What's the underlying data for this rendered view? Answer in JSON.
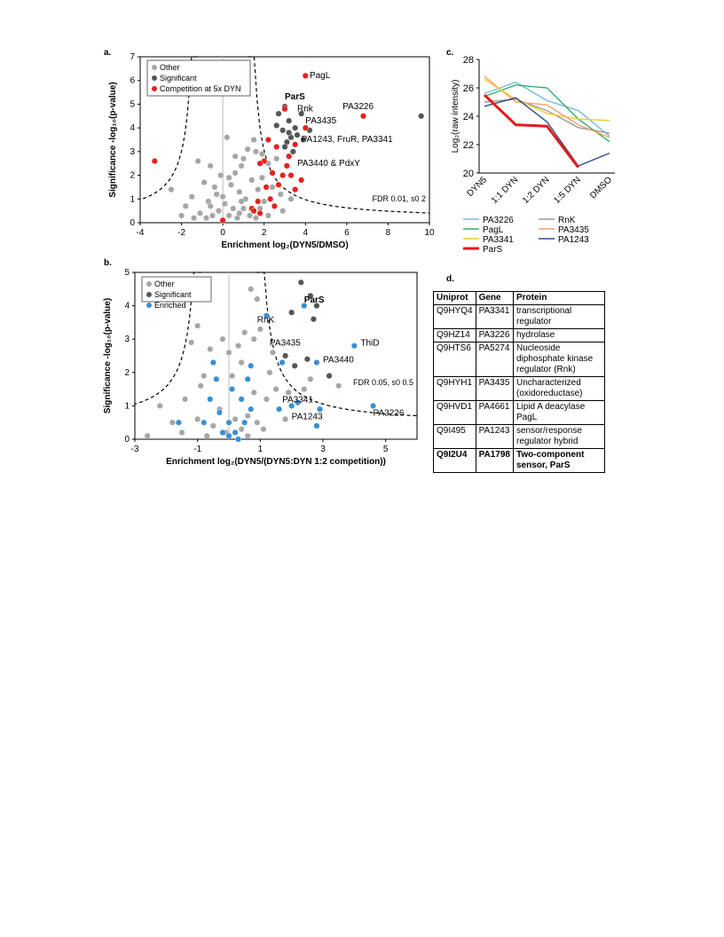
{
  "panels": {
    "a": "a.",
    "b": "b.",
    "c": "c.",
    "d": "d."
  },
  "chart_data": [
    {
      "id": "a",
      "type": "scatter",
      "xlabel": "Enrichment log₂(DYN5/DMSO)",
      "ylabel": "Significance -log₁₀(p-value)",
      "xlim": [
        -4,
        10
      ],
      "ylim": [
        0,
        7
      ],
      "xticks": [
        "-4",
        "-2",
        "0",
        "2",
        "4",
        "6",
        "8",
        "10"
      ],
      "yticks": [
        "0",
        "1",
        "2",
        "3",
        "4",
        "5",
        "6",
        "7"
      ],
      "legend": [
        "Other",
        "Significant",
        "Competition at 5x DYN"
      ],
      "legend_position": "top-left",
      "threshold_label": "FDR 0.01, s0 2",
      "series": [
        {
          "name": "Significant",
          "color": "#555555",
          "points": [
            [
              2.7,
              4.6
            ],
            [
              3.0,
              4.9
            ],
            [
              3.2,
              4.3
            ],
            [
              3.5,
              4.0
            ],
            [
              2.9,
              3.9
            ],
            [
              3.3,
              3.6
            ],
            [
              3.1,
              3.4
            ],
            [
              3.6,
              3.7
            ],
            [
              3.9,
              3.5
            ],
            [
              4.2,
              3.9
            ],
            [
              3.0,
              3.2
            ],
            [
              3.4,
              3.0
            ],
            [
              9.6,
              4.5
            ],
            [
              3.8,
              4.6
            ],
            [
              2.6,
              4.1
            ],
            [
              3.2,
              3.8
            ]
          ]
        },
        {
          "name": "Competition at 5x DYN",
          "color": "#e8201c",
          "points": [
            [
              4.0,
              6.2
            ],
            [
              6.8,
              4.5
            ],
            [
              -3.3,
              2.6
            ],
            [
              3.0,
              4.8
            ],
            [
              4.0,
              4.0
            ],
            [
              3.5,
              3.3
            ],
            [
              3.2,
              2.8
            ],
            [
              2.6,
              3.2
            ],
            [
              2.2,
              3.5
            ],
            [
              2.0,
              2.6
            ],
            [
              1.8,
              2.5
            ],
            [
              2.4,
              2.1
            ],
            [
              2.1,
              1.5
            ],
            [
              2.7,
              1.6
            ],
            [
              3.5,
              1.4
            ],
            [
              3.8,
              1.8
            ],
            [
              1.7,
              0.9
            ],
            [
              2.3,
              1.0
            ],
            [
              1.8,
              0.4
            ],
            [
              1.4,
              0.6
            ],
            [
              0.0,
              0.1
            ],
            [
              3.1,
              2.4
            ],
            [
              2.9,
              2.0
            ],
            [
              3.3,
              2.0
            ],
            [
              1.5,
              0.5
            ],
            [
              2.5,
              0.7
            ]
          ]
        },
        {
          "name": "Other",
          "color": "#a6a6a6",
          "points": [
            [
              -2.5,
              1.4
            ],
            [
              -1.8,
              0.7
            ],
            [
              -1.2,
              2.6
            ],
            [
              -0.6,
              2.4
            ],
            [
              -0.9,
              1.7
            ],
            [
              -0.3,
              1.2
            ],
            [
              0.2,
              3.6
            ],
            [
              0.6,
              2.8
            ],
            [
              0.9,
              2.4
            ],
            [
              1.2,
              3.1
            ],
            [
              1.6,
              3.0
            ],
            [
              1.9,
              2.9
            ],
            [
              2.2,
              2.5
            ],
            [
              0.4,
              1.6
            ],
            [
              0.8,
              1.3
            ],
            [
              1.1,
              1.0
            ],
            [
              1.4,
              1.8
            ],
            [
              -0.7,
              0.9
            ],
            [
              -0.2,
              0.5
            ],
            [
              0.3,
              0.3
            ],
            [
              0.7,
              0.2
            ],
            [
              -0.5,
              0.3
            ],
            [
              1.0,
              0.6
            ],
            [
              1.3,
              0.3
            ],
            [
              2.0,
              0.9
            ],
            [
              1.7,
              1.4
            ],
            [
              2.4,
              1.5
            ],
            [
              -1.1,
              0.4
            ],
            [
              -1.5,
              1.1
            ],
            [
              0.1,
              0.8
            ],
            [
              0.5,
              0.6
            ],
            [
              0.9,
              0.9
            ],
            [
              -0.8,
              0.2
            ],
            [
              1.6,
              0.2
            ],
            [
              -0.1,
              2.0
            ],
            [
              0.6,
              2.1
            ],
            [
              1.0,
              2.7
            ],
            [
              1.5,
              3.5
            ],
            [
              2.6,
              2.7
            ],
            [
              0.3,
              1.9
            ],
            [
              -0.4,
              1.5
            ],
            [
              1.9,
              1.9
            ],
            [
              2.8,
              1.2
            ],
            [
              -1.4,
              0.2
            ],
            [
              -2.0,
              0.3
            ],
            [
              0.0,
              1.1
            ],
            [
              1.8,
              0.6
            ],
            [
              2.2,
              0.3
            ],
            [
              -0.6,
              0.7
            ],
            [
              0.8,
              0.4
            ],
            [
              2.9,
              0.5
            ],
            [
              3.3,
              1.0
            ]
          ]
        }
      ],
      "labels": [
        {
          "text": "PagL",
          "x": 4.2,
          "y": 6.1
        },
        {
          "text": "ParS",
          "x": 3.0,
          "y": 5.2,
          "bold": true
        },
        {
          "text": "PA3226",
          "x": 5.8,
          "y": 4.8
        },
        {
          "text": "Rnk",
          "x": 3.6,
          "y": 4.7
        },
        {
          "text": "PA3435",
          "x": 4.0,
          "y": 4.2
        },
        {
          "text": "PA1243, FruR, PA3341",
          "x": 3.8,
          "y": 3.4
        },
        {
          "text": "PA3440 & PdxY",
          "x": 3.6,
          "y": 2.4
        }
      ]
    },
    {
      "id": "b",
      "type": "scatter",
      "xlabel": "Enrichment log₂(DYN5/(DYN5:DYN 1:2 competition))",
      "ylabel": "Significance -log₁₀(p-value)",
      "xlim": [
        -3,
        6
      ],
      "ylim": [
        0,
        5
      ],
      "xticks": [
        "-3",
        "-1",
        "1",
        "3",
        "5"
      ],
      "yticks": [
        "0",
        "1",
        "2",
        "3",
        "4",
        "5"
      ],
      "legend": [
        "Other",
        "Significant",
        "Enriched"
      ],
      "legend_position": "top-left",
      "threshold_label": "FDR 0.05, s0 0.5",
      "series": [
        {
          "name": "Significant",
          "color": "#555555",
          "points": [
            [
              2.3,
              4.7
            ],
            [
              2.6,
              4.3
            ],
            [
              2.8,
              4.0
            ],
            [
              2.0,
              3.8
            ],
            [
              2.7,
              3.6
            ],
            [
              1.8,
              2.5
            ],
            [
              2.1,
              2.2
            ],
            [
              2.5,
              2.4
            ],
            [
              3.2,
              1.9
            ]
          ]
        },
        {
          "name": "Enriched",
          "color": "#3a8fd4",
          "points": [
            [
              2.4,
              4.0
            ],
            [
              1.2,
              3.7
            ],
            [
              4.0,
              2.8
            ],
            [
              2.8,
              2.3
            ],
            [
              1.7,
              2.3
            ],
            [
              2.2,
              1.1
            ],
            [
              2.9,
              0.9
            ],
            [
              2.0,
              1.0
            ],
            [
              2.8,
              0.4
            ],
            [
              4.6,
              1.0
            ],
            [
              -0.5,
              2.3
            ],
            [
              -0.4,
              1.8
            ],
            [
              -0.6,
              1.2
            ],
            [
              -0.3,
              0.8
            ],
            [
              0.1,
              1.5
            ],
            [
              0.4,
              1.2
            ],
            [
              0.6,
              1.8
            ],
            [
              0.7,
              2.2
            ],
            [
              0.5,
              0.5
            ],
            [
              -0.8,
              0.5
            ],
            [
              -1.6,
              0.5
            ],
            [
              -0.2,
              0.2
            ],
            [
              0.0,
              0.1
            ],
            [
              0.2,
              0.2
            ],
            [
              0.3,
              0.0
            ],
            [
              0.0,
              0.5
            ],
            [
              0.7,
              0.9
            ],
            [
              1.6,
              0.9
            ]
          ]
        },
        {
          "name": "Other",
          "color": "#a6a6a6",
          "points": [
            [
              -2.2,
              1.0
            ],
            [
              -1.8,
              0.5
            ],
            [
              -1.2,
              2.9
            ],
            [
              -1.0,
              3.4
            ],
            [
              -0.8,
              1.9
            ],
            [
              -0.6,
              2.7
            ],
            [
              -0.2,
              3.0
            ],
            [
              0.0,
              2.6
            ],
            [
              0.3,
              2.8
            ],
            [
              0.5,
              3.2
            ],
            [
              0.8,
              3.0
            ],
            [
              0.9,
              4.2
            ],
            [
              1.0,
              3.3
            ],
            [
              0.7,
              4.5
            ],
            [
              1.3,
              2.0
            ],
            [
              1.5,
              1.5
            ],
            [
              1.2,
              1.2
            ],
            [
              -1.4,
              1.2
            ],
            [
              -1.0,
              0.6
            ],
            [
              -0.5,
              0.4
            ],
            [
              -0.3,
              0.9
            ],
            [
              0.2,
              0.6
            ],
            [
              0.4,
              0.3
            ],
            [
              0.6,
              0.7
            ],
            [
              0.9,
              0.5
            ],
            [
              1.1,
              0.3
            ],
            [
              -1.5,
              0.2
            ],
            [
              -0.9,
              1.6
            ],
            [
              0.1,
              1.9
            ],
            [
              0.4,
              2.3
            ],
            [
              0.8,
              1.4
            ],
            [
              1.4,
              2.6
            ],
            [
              -0.1,
              0.2
            ],
            [
              0.6,
              0.1
            ],
            [
              -0.7,
              0.1
            ],
            [
              1.9,
              1.4
            ],
            [
              1.8,
              0.6
            ],
            [
              2.4,
              1.5
            ],
            [
              2.6,
              1.8
            ],
            [
              3.5,
              1.6
            ],
            [
              -2.6,
              0.1
            ]
          ]
        }
      ],
      "labels": [
        {
          "text": "ParS",
          "x": 2.4,
          "y": 4.1,
          "bold": true
        },
        {
          "text": "RnK",
          "x": 0.9,
          "y": 3.5
        },
        {
          "text": "ThiD",
          "x": 4.2,
          "y": 2.8
        },
        {
          "text": "PA3435",
          "x": 1.3,
          "y": 2.8
        },
        {
          "text": "PA3440",
          "x": 3.0,
          "y": 2.3
        },
        {
          "text": "PA3341",
          "x": 1.7,
          "y": 1.1
        },
        {
          "text": "PA1243",
          "x": 2.0,
          "y": 0.6
        },
        {
          "text": "PA3226",
          "x": 4.6,
          "y": 0.7
        }
      ]
    },
    {
      "id": "c",
      "type": "line",
      "ylabel": "Log₂(raw intensity)",
      "categories": [
        "DYN5",
        "1:1 DYN",
        "1:2 DYN",
        "1:5 DYN",
        "DMSO"
      ],
      "ylim": [
        20,
        28
      ],
      "yticks": [
        "20",
        "22",
        "24",
        "26",
        "28"
      ],
      "legend_position": "bottom",
      "series": [
        {
          "name": "PA3226",
          "color": "#7ab8dd",
          "values": [
            25.6,
            26.4,
            25.1,
            24.4,
            22.6
          ]
        },
        {
          "name": "RnK",
          "color": "#9b9b9b",
          "values": [
            25.0,
            25.2,
            24.4,
            23.2,
            22.8
          ]
        },
        {
          "name": "PagL",
          "color": "#2eb06a",
          "values": [
            25.4,
            26.2,
            26.0,
            23.8,
            22.2
          ]
        },
        {
          "name": "PA3435",
          "color": "#f0a060",
          "values": [
            26.8,
            25.0,
            24.8,
            23.4,
            22.5
          ]
        },
        {
          "name": "PA3341",
          "color": "#f2c832",
          "values": [
            26.6,
            25.2,
            24.2,
            23.8,
            23.7
          ]
        },
        {
          "name": "PA1243",
          "color": "#2f4e8c",
          "values": [
            24.7,
            25.3,
            23.6,
            20.5,
            21.4
          ]
        },
        {
          "name": "ParS",
          "color": "#e41a1c",
          "values": [
            25.5,
            23.4,
            23.3,
            20.4,
            null
          ],
          "bold": true
        }
      ]
    }
  ],
  "table_d": {
    "headers": [
      "Uniprot",
      "Gene",
      "Protein"
    ],
    "rows": [
      [
        "Q9HYQ4",
        "PA3341",
        "transcriptional regulator"
      ],
      [
        "Q9HZ14",
        "PA3226",
        "hydrolase"
      ],
      [
        "Q9HTS6",
        "PA5274",
        "Nucleoside diphosphate kinase regulator (Rnk)"
      ],
      [
        "Q9HYH1",
        "PA3435",
        "Uncharacterized (oxidoreductase)"
      ],
      [
        "Q9HVD1",
        "PA4661",
        "Lipid A deacylase PagL"
      ],
      [
        "Q9I495",
        "PA1243",
        "sensor/response regulator hybrid"
      ],
      [
        "Q9I2U4",
        "PA1798",
        "Two-component sensor, ParS"
      ]
    ]
  }
}
